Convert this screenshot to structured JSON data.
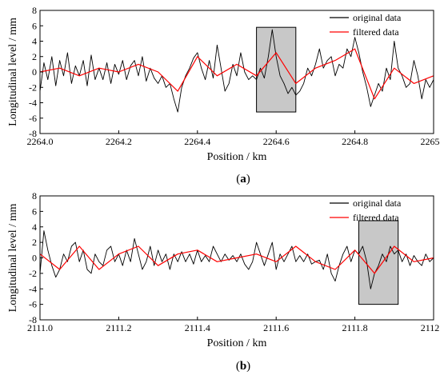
{
  "chart_data": [
    {
      "type": "line",
      "panel_label": "a",
      "xlabel": "Position / km",
      "ylabel": "Longitudinal level / mm",
      "xlim": [
        2264.0,
        2265.0
      ],
      "ylim": [
        -8,
        8
      ],
      "xticks": [
        "2264.0",
        "2264.2",
        "2264.4",
        "2264.6",
        "2264.8",
        "2265.0"
      ],
      "yticks": [
        "8",
        "6",
        "4",
        "2",
        "0",
        "-2",
        "-4",
        "-6",
        "-8"
      ],
      "legend_position": "top-right",
      "highlight_box": {
        "x": [
          2264.55,
          2264.65
        ],
        "y": [
          -5.2,
          5.8
        ]
      },
      "series": [
        {
          "name": "original data",
          "color": "#000000",
          "x": [
            2264.0,
            2264.01,
            2264.02,
            2264.03,
            2264.04,
            2264.05,
            2264.06,
            2264.07,
            2264.08,
            2264.09,
            2264.1,
            2264.11,
            2264.12,
            2264.13,
            2264.14,
            2264.15,
            2264.16,
            2264.17,
            2264.18,
            2264.19,
            2264.2,
            2264.21,
            2264.22,
            2264.23,
            2264.24,
            2264.25,
            2264.26,
            2264.27,
            2264.28,
            2264.29,
            2264.3,
            2264.31,
            2264.32,
            2264.33,
            2264.34,
            2264.35,
            2264.36,
            2264.37,
            2264.38,
            2264.39,
            2264.4,
            2264.41,
            2264.42,
            2264.43,
            2264.44,
            2264.45,
            2264.46,
            2264.47,
            2264.48,
            2264.49,
            2264.5,
            2264.51,
            2264.52,
            2264.53,
            2264.54,
            2264.55,
            2264.56,
            2264.57,
            2264.58,
            2264.59,
            2264.6,
            2264.61,
            2264.62,
            2264.63,
            2264.64,
            2264.65,
            2264.66,
            2264.67,
            2264.68,
            2264.69,
            2264.7,
            2264.71,
            2264.72,
            2264.73,
            2264.74,
            2264.75,
            2264.76,
            2264.77,
            2264.78,
            2264.79,
            2264.8,
            2264.81,
            2264.82,
            2264.83,
            2264.84,
            2264.85,
            2264.86,
            2264.87,
            2264.88,
            2264.89,
            2264.9,
            2264.91,
            2264.92,
            2264.93,
            2264.94,
            2264.95,
            2264.96,
            2264.97,
            2264.98,
            2264.99,
            2265.0
          ],
          "y": [
            -2.5,
            1.2,
            -1.0,
            2.0,
            -1.8,
            1.5,
            -0.5,
            2.5,
            -1.5,
            0.8,
            -0.5,
            1.5,
            -1.8,
            2.2,
            -1.0,
            0.5,
            -1.0,
            1.2,
            -1.5,
            1.0,
            -0.3,
            1.5,
            -1.0,
            0.8,
            1.5,
            -0.5,
            2.0,
            -1.2,
            0.5,
            -0.8,
            -1.5,
            -0.5,
            -2.0,
            -1.5,
            -3.5,
            -5.2,
            -2.0,
            -0.5,
            0.5,
            1.8,
            2.5,
            0.5,
            -1.0,
            1.5,
            -0.8,
            3.5,
            0.5,
            -2.5,
            -1.5,
            1.0,
            -0.5,
            2.5,
            0.0,
            -1.0,
            -0.5,
            -1.0,
            0.5,
            -0.8,
            2.0,
            5.5,
            2.0,
            -0.5,
            -1.5,
            -2.8,
            -2.0,
            -3.0,
            -2.5,
            -1.5,
            0.5,
            -0.5,
            1.0,
            3.0,
            0.5,
            1.5,
            2.0,
            -0.5,
            1.0,
            0.5,
            3.0,
            2.0,
            4.5,
            2.5,
            0.0,
            -2.0,
            -4.5,
            -3.0,
            -1.5,
            -2.5,
            0.5,
            -1.0,
            4.0,
            0.5,
            -0.5,
            -2.0,
            -1.5,
            1.5,
            -0.5,
            -3.5,
            -1.0,
            -2.0,
            -1.0
          ]
        },
        {
          "name": "filtered data",
          "color": "#ff0000",
          "x": [
            2264.0,
            2264.05,
            2264.1,
            2264.15,
            2264.2,
            2264.25,
            2264.3,
            2264.35,
            2264.4,
            2264.45,
            2264.5,
            2264.55,
            2264.6,
            2264.65,
            2264.7,
            2264.75,
            2264.8,
            2264.85,
            2264.9,
            2264.95,
            2265.0
          ],
          "y": [
            0.0,
            0.5,
            -0.5,
            0.5,
            0.0,
            1.0,
            0.0,
            -2.5,
            2.0,
            -0.5,
            1.0,
            -0.5,
            2.5,
            -1.5,
            0.5,
            1.5,
            3.0,
            -3.5,
            0.5,
            -1.5,
            -0.5
          ]
        }
      ]
    },
    {
      "type": "line",
      "panel_label": "b",
      "xlabel": "Position / km",
      "ylabel": "Longitudinal level / mm",
      "xlim": [
        2111.0,
        2112.0
      ],
      "ylim": [
        -8,
        8
      ],
      "xticks": [
        "2111.0",
        "2111.2",
        "2111.4",
        "2111.6",
        "2111.8",
        "2112.0"
      ],
      "yticks": [
        "8",
        "6",
        "4",
        "2",
        "0",
        "-2",
        "-4",
        "-6",
        "-8"
      ],
      "legend_position": "top-right",
      "highlight_box": {
        "x": [
          2111.81,
          2111.91
        ],
        "y": [
          -6.0,
          4.8
        ]
      },
      "series": [
        {
          "name": "original data",
          "color": "#000000",
          "x": [
            2111.0,
            2111.01,
            2111.02,
            2111.03,
            2111.04,
            2111.05,
            2111.06,
            2111.07,
            2111.08,
            2111.09,
            2111.1,
            2111.11,
            2111.12,
            2111.13,
            2111.14,
            2111.15,
            2111.16,
            2111.17,
            2111.18,
            2111.19,
            2111.2,
            2111.21,
            2111.22,
            2111.23,
            2111.24,
            2111.25,
            2111.26,
            2111.27,
            2111.28,
            2111.29,
            2111.3,
            2111.31,
            2111.32,
            2111.33,
            2111.34,
            2111.35,
            2111.36,
            2111.37,
            2111.38,
            2111.39,
            2111.4,
            2111.41,
            2111.42,
            2111.43,
            2111.44,
            2111.45,
            2111.46,
            2111.47,
            2111.48,
            2111.49,
            2111.5,
            2111.51,
            2111.52,
            2111.53,
            2111.54,
            2111.55,
            2111.56,
            2111.57,
            2111.58,
            2111.59,
            2111.6,
            2111.61,
            2111.62,
            2111.63,
            2111.64,
            2111.65,
            2111.66,
            2111.67,
            2111.68,
            2111.69,
            2111.7,
            2111.71,
            2111.72,
            2111.73,
            2111.74,
            2111.75,
            2111.76,
            2111.77,
            2111.78,
            2111.79,
            2111.8,
            2111.81,
            2111.82,
            2111.83,
            2111.84,
            2111.85,
            2111.86,
            2111.87,
            2111.88,
            2111.89,
            2111.9,
            2111.91,
            2111.92,
            2111.93,
            2111.94,
            2111.95,
            2111.96,
            2111.97,
            2111.98,
            2111.99,
            2112.0
          ],
          "y": [
            -2.0,
            3.5,
            1.0,
            -1.0,
            -2.5,
            -1.5,
            0.5,
            -0.5,
            1.5,
            2.0,
            -0.5,
            1.0,
            -1.5,
            -2.0,
            0.5,
            -0.5,
            -1.0,
            1.0,
            1.5,
            -0.5,
            0.5,
            -1.0,
            1.0,
            -0.5,
            2.5,
            0.5,
            -1.5,
            -0.5,
            1.5,
            -1.0,
            1.0,
            -0.5,
            0.5,
            -1.5,
            0.5,
            -0.5,
            0.8,
            -0.5,
            0.5,
            -0.8,
            1.0,
            -0.5,
            0.3,
            -0.5,
            1.5,
            0.5,
            -0.5,
            0.5,
            -0.3,
            0.3,
            -0.5,
            0.5,
            -0.8,
            -1.5,
            -0.5,
            2.0,
            0.5,
            -1.0,
            0.5,
            2.0,
            -1.5,
            0.5,
            -0.5,
            0.5,
            1.5,
            -0.5,
            0.3,
            -0.5,
            0.5,
            -0.8,
            -0.5,
            -0.3,
            -1.5,
            0.5,
            -2.0,
            -3.0,
            -1.0,
            0.5,
            1.5,
            -0.5,
            1.0,
            0.5,
            1.5,
            -0.5,
            -4.0,
            -2.0,
            -1.0,
            0.5,
            -0.5,
            1.5,
            0.5,
            1.0,
            -0.5,
            0.5,
            -1.0,
            0.3,
            -0.5,
            -1.0,
            0.5,
            -0.5,
            0.0
          ]
        },
        {
          "name": "filtered data",
          "color": "#ff0000",
          "x": [
            2111.0,
            2111.05,
            2111.1,
            2111.15,
            2111.2,
            2111.25,
            2111.3,
            2111.35,
            2111.4,
            2111.45,
            2111.5,
            2111.55,
            2111.6,
            2111.65,
            2111.7,
            2111.75,
            2111.8,
            2111.85,
            2111.9,
            2111.95,
            2112.0
          ],
          "y": [
            0.5,
            -1.5,
            1.5,
            -1.5,
            0.5,
            1.5,
            -1.0,
            0.5,
            1.0,
            -0.5,
            0.0,
            0.5,
            -0.5,
            1.5,
            -0.5,
            -1.5,
            1.0,
            -2.0,
            1.5,
            -0.5,
            0.0
          ]
        }
      ]
    }
  ]
}
